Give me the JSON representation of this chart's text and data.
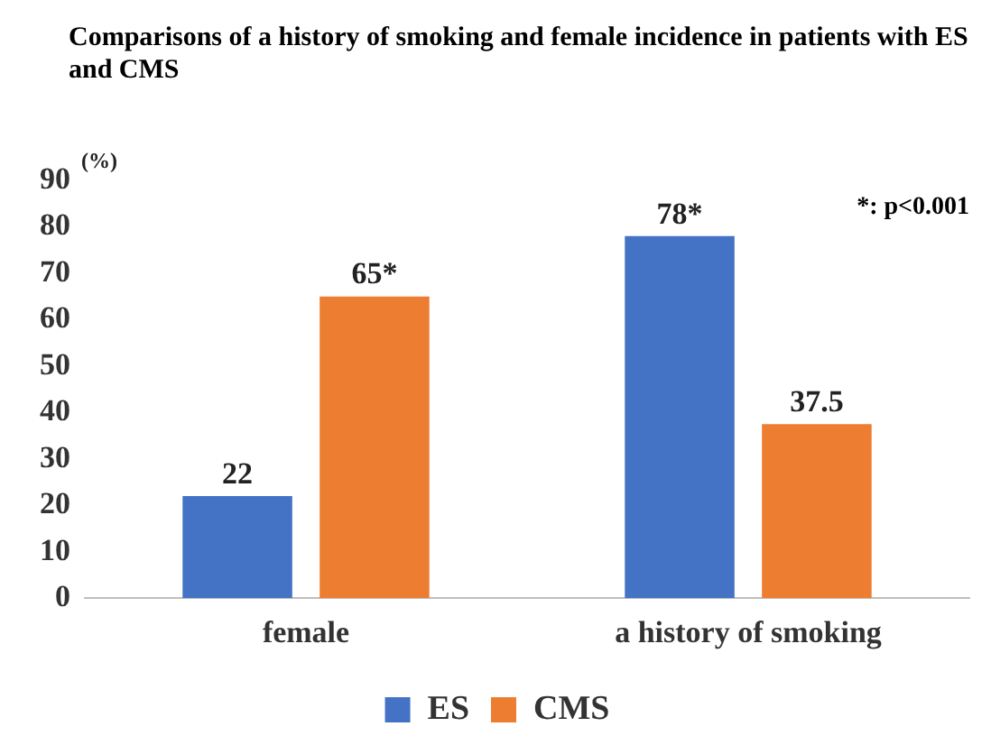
{
  "chart_data": {
    "type": "bar",
    "title": "Comparisons of a history of smoking and female incidence in patients with ES and CMS",
    "ylabel": "(%)",
    "categories": [
      "female",
      "a history of smoking"
    ],
    "series": [
      {
        "name": "ES",
        "color": "#4472c4",
        "values": [
          22,
          78
        ],
        "value_labels": [
          "22",
          "78*"
        ]
      },
      {
        "name": "CMS",
        "color": "#ed7d31",
        "values": [
          65,
          37.5
        ],
        "value_labels": [
          "65*",
          "37.5"
        ]
      }
    ],
    "ylim": [
      0,
      90
    ],
    "yticks": [
      0,
      10,
      20,
      30,
      40,
      50,
      60,
      70,
      80,
      90
    ],
    "grid": false,
    "legend": "bottom",
    "annotations": [
      "*: p<0.001"
    ]
  }
}
